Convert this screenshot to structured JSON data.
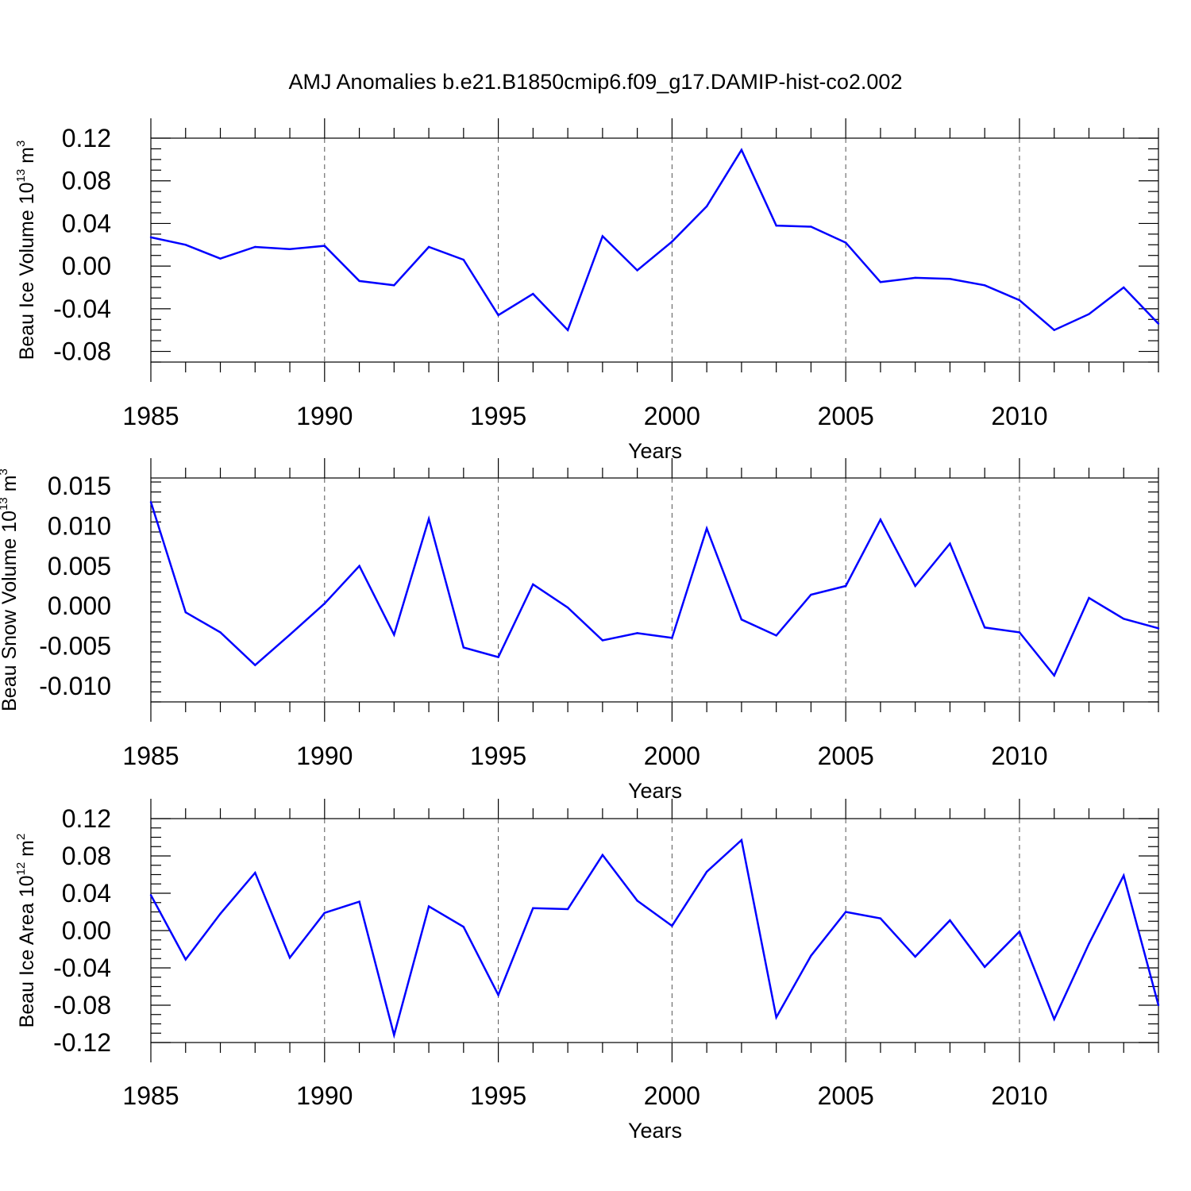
{
  "title": "AMJ Anomalies b.e21.B1850cmip6.f09_g17.DAMIP-hist-co2.002",
  "colors": {
    "line": "#0000ff",
    "axis": "#000000",
    "grid": "#555555"
  },
  "chart_data": [
    {
      "type": "line",
      "xlabel": "Years",
      "ylabel": {
        "text": "Beau Ice Volume 10",
        "exp": "13",
        "unit": " m",
        "unit_exp": "3"
      },
      "xlim": [
        1985,
        2014
      ],
      "ylim": [
        -0.09,
        0.12
      ],
      "xticks": [
        1985,
        1990,
        1995,
        2000,
        2005,
        2010
      ],
      "xtick_labels": [
        "1985",
        "1990",
        "1995",
        "2000",
        "2005",
        "2010"
      ],
      "yticks": [
        0.12,
        0.08,
        0.04,
        0.0,
        -0.04,
        -0.08
      ],
      "ytick_labels": [
        "0.12",
        "0.08",
        "0.04",
        "0.00",
        "-0.04",
        "-0.08"
      ],
      "grid": "vertical-dashed",
      "x": [
        1985,
        1986,
        1987,
        1988,
        1989,
        1990,
        1991,
        1992,
        1993,
        1994,
        1995,
        1996,
        1997,
        1998,
        1999,
        2000,
        2001,
        2002,
        2003,
        2004,
        2005,
        2006,
        2007,
        2008,
        2009,
        2010,
        2011,
        2012,
        2013,
        2014
      ],
      "y": [
        0.027,
        0.02,
        0.007,
        0.018,
        0.016,
        0.019,
        -0.014,
        -0.018,
        0.018,
        0.006,
        -0.046,
        -0.026,
        -0.06,
        0.028,
        -0.004,
        0.023,
        0.056,
        0.109,
        0.038,
        0.037,
        0.022,
        -0.015,
        -0.011,
        -0.012,
        -0.018,
        -0.032,
        -0.06,
        -0.045,
        -0.02,
        -0.054
      ]
    },
    {
      "type": "line",
      "xlabel": "Years",
      "ylabel": {
        "text": "Beau Snow Volume 10",
        "exp": "13",
        "unit": " m",
        "unit_exp": "3"
      },
      "xlim": [
        1985,
        2014
      ],
      "ylim": [
        -0.012,
        0.016
      ],
      "xticks": [
        1985,
        1990,
        1995,
        2000,
        2005,
        2010
      ],
      "xtick_labels": [
        "1985",
        "1990",
        "1995",
        "2000",
        "2005",
        "2010"
      ],
      "yticks": [
        0.015,
        0.01,
        0.005,
        0.0,
        -0.005,
        -0.01
      ],
      "ytick_labels": [
        "0.015",
        "0.010",
        "0.005",
        "0.000",
        "-0.005",
        "-0.010"
      ],
      "grid": "vertical-dashed",
      "x": [
        1985,
        1986,
        1987,
        1988,
        1989,
        1990,
        1991,
        1992,
        1993,
        1994,
        1995,
        1996,
        1997,
        1998,
        1999,
        2000,
        2001,
        2002,
        2003,
        2004,
        2005,
        2006,
        2007,
        2008,
        2009,
        2010,
        2011,
        2012,
        2013,
        2014
      ],
      "y": [
        0.013,
        -0.0008,
        -0.0033,
        -0.0074,
        -0.0036,
        0.0003,
        0.005,
        -0.0036,
        0.0109,
        -0.0052,
        -0.0064,
        0.0027,
        -0.0002,
        -0.0043,
        -0.0034,
        -0.004,
        0.0097,
        -0.0017,
        -0.0037,
        0.0014,
        0.0025,
        0.0108,
        0.0025,
        0.0078,
        -0.0027,
        -0.0033,
        -0.0087,
        0.001,
        -0.0016,
        -0.0028
      ]
    },
    {
      "type": "line",
      "xlabel": "Years",
      "ylabel": {
        "text": "Beau Ice Area 10",
        "exp": "12",
        "unit": " m",
        "unit_exp": "2"
      },
      "xlim": [
        1985,
        2014
      ],
      "ylim": [
        -0.12,
        0.12
      ],
      "xticks": [
        1985,
        1990,
        1995,
        2000,
        2005,
        2010
      ],
      "xtick_labels": [
        "1985",
        "1990",
        "1995",
        "2000",
        "2005",
        "2010"
      ],
      "yticks": [
        0.12,
        0.08,
        0.04,
        0.0,
        -0.04,
        -0.08,
        -0.12
      ],
      "ytick_labels": [
        "0.12",
        "0.08",
        "0.04",
        "0.00",
        "-0.04",
        "-0.08",
        "-0.12"
      ],
      "grid": "vertical-dashed",
      "x": [
        1985,
        1986,
        1987,
        1988,
        1989,
        1990,
        1991,
        1992,
        1993,
        1994,
        1995,
        1996,
        1997,
        1998,
        1999,
        2000,
        2001,
        2002,
        2003,
        2004,
        2005,
        2006,
        2007,
        2008,
        2009,
        2010,
        2011,
        2012,
        2013,
        2014
      ],
      "y": [
        0.038,
        -0.031,
        0.018,
        0.062,
        -0.029,
        0.019,
        0.031,
        -0.112,
        0.026,
        0.004,
        -0.069,
        0.024,
        0.023,
        0.081,
        0.032,
        0.005,
        0.063,
        0.097,
        -0.093,
        -0.027,
        0.02,
        0.013,
        -0.028,
        0.011,
        -0.039,
        -0.001,
        -0.095,
        -0.014,
        0.059,
        -0.08
      ]
    }
  ]
}
